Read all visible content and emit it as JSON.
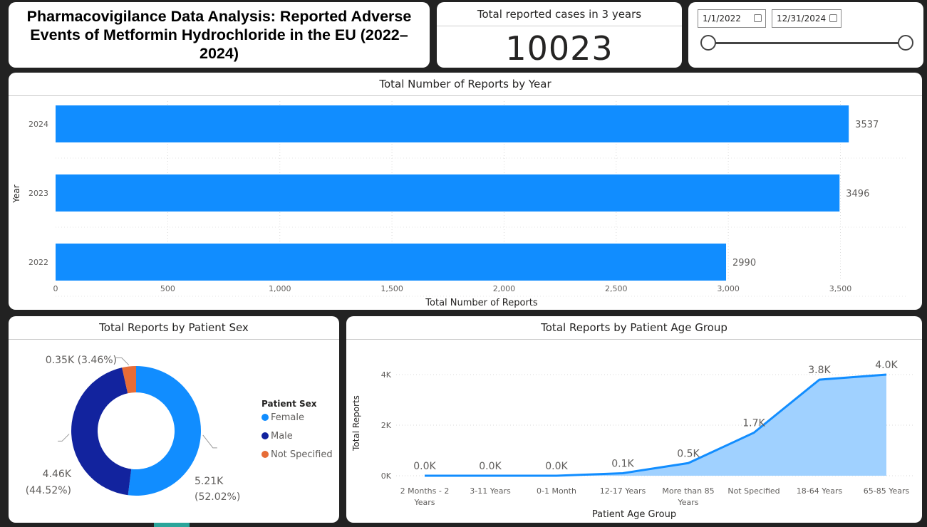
{
  "title": "Pharmacovigilance Data Analysis: Reported Adverse Events of Metformin Hydrochloride in the EU (2022–2024)",
  "kpi": {
    "label": "Total reported cases in 3 years",
    "value": "10023"
  },
  "date_slicer": {
    "start": "1/1/2022",
    "end": "12/31/2024",
    "icon": "calendar-icon"
  },
  "chart_data": [
    {
      "type": "bar",
      "orientation": "horizontal",
      "title": "Total Number of Reports by Year",
      "xlabel": "Total Number of Reports",
      "ylabel": "Year",
      "categories": [
        "2024",
        "2023",
        "2022"
      ],
      "values": [
        3537,
        3496,
        2990
      ],
      "data_labels": [
        "3537",
        "3496",
        "2990"
      ],
      "xlim": [
        0,
        3600
      ],
      "x_ticks": [
        0,
        500,
        1000,
        1500,
        2000,
        2500,
        3000,
        3500
      ],
      "x_tick_labels": [
        "0",
        "500",
        "1,000",
        "1,500",
        "2,000",
        "2,500",
        "3,000",
        "3,500"
      ],
      "grid": true,
      "color": "#118DFF"
    },
    {
      "type": "pie",
      "variant": "donut",
      "title": "Total Reports by Patient Sex",
      "legend_title": "Patient Sex",
      "legend_position": "right",
      "categories": [
        "Female",
        "Male",
        "Not Specified"
      ],
      "values": [
        5.21,
        4.46,
        0.35
      ],
      "percentages": [
        52.02,
        44.52,
        3.46
      ],
      "data_labels": [
        "5.21K",
        "4.46K",
        "0.35K (3.46%)"
      ],
      "percent_labels": [
        "(52.02%)",
        "(44.52%)",
        ""
      ],
      "colors": [
        "#118DFF",
        "#12239E",
        "#E66C37"
      ]
    },
    {
      "type": "area",
      "title": "Total Reports by Patient Age Group",
      "xlabel": "Patient Age Group",
      "ylabel": "Total Reports",
      "categories": [
        "2 Months - 2 Years",
        "3-11 Years",
        "0-1 Month",
        "12-17 Years",
        "More than 85 Years",
        "Not Specified",
        "18-64 Years",
        "65-85 Years"
      ],
      "category_labels": [
        [
          "2 Months - 2",
          "Years"
        ],
        [
          "3-11 Years"
        ],
        [
          "0-1 Month"
        ],
        [
          "12-17 Years"
        ],
        [
          "More than 85",
          "Years"
        ],
        [
          "Not Specified"
        ],
        [
          "18-64 Years"
        ],
        [
          "65-85 Years"
        ]
      ],
      "values": [
        0.0,
        0.0,
        0.0,
        0.1,
        0.5,
        1.7,
        3.8,
        4.0
      ],
      "data_labels": [
        "0.0K",
        "0.0K",
        "0.0K",
        "0.1K",
        "0.5K",
        "1.7K",
        "3.8K",
        "4.0K"
      ],
      "ylim": [
        0,
        4.2
      ],
      "y_ticks": [
        0,
        2,
        4
      ],
      "y_tick_labels": [
        "0K",
        "2K",
        "4K"
      ],
      "grid": true,
      "line_color": "#118DFF",
      "fill_color": "#A0D1FF"
    }
  ]
}
